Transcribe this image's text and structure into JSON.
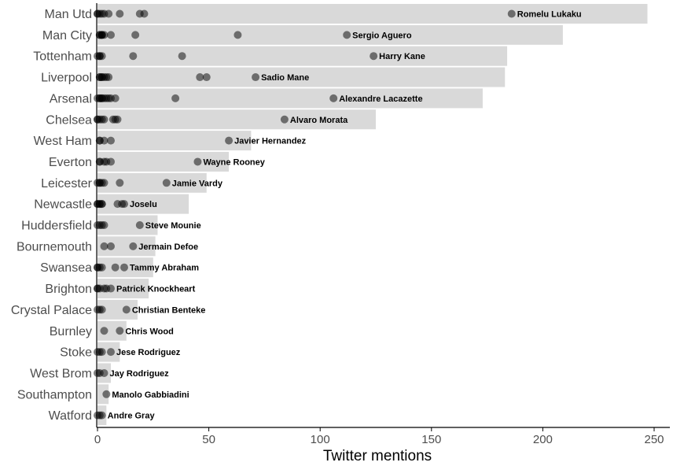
{
  "chart_data": {
    "type": "bar",
    "xlabel": "Twitter mentions",
    "ylabel": "",
    "xlim": [
      0,
      260
    ],
    "xticks": [
      0,
      50,
      100,
      150,
      200,
      250
    ],
    "tick_labels": [
      "0",
      "50",
      "100",
      "150",
      "200",
      "250"
    ],
    "grid": false,
    "colors": {
      "bar": "#d9d9d9",
      "point": "#000000",
      "point_alpha": 0.5,
      "axis": "#000000",
      "label": "#4d4d4d"
    },
    "categories": [
      "Man Utd",
      "Man City",
      "Tottenham",
      "Liverpool",
      "Arsenal",
      "Chelsea",
      "West Ham",
      "Everton",
      "Leicester",
      "Newcastle",
      "Huddersfield",
      "Bournemouth",
      "Swansea",
      "Brighton",
      "Crystal Palace",
      "Burnley",
      "Stoke",
      "West Brom",
      "Southampton",
      "Watford"
    ],
    "values": [
      247,
      209,
      184,
      183,
      173,
      125,
      69,
      59,
      49,
      41,
      27,
      26,
      25,
      23,
      18,
      13,
      10,
      6,
      5,
      4
    ],
    "top_players": [
      "Romelu Lukaku",
      "Sergio Aguero",
      "Harry Kane",
      "Sadio Mane",
      "Alexandre Lacazette",
      "Alvaro Morata",
      "Javier Hernandez",
      "Wayne Rooney",
      "Jamie Vardy",
      "Joselu",
      "Steve Mounie",
      "Jermain Defoe",
      "Tammy Abraham",
      "Patrick Knockheart",
      "Christian Benteke",
      "Chris Wood",
      "Jese Rodriguez",
      "Jay Rodriguez",
      "Manolo Gabbiadini",
      "Andre Gray"
    ],
    "player_mentions": [
      [
        0,
        0,
        1,
        2,
        3,
        5,
        10,
        19,
        21,
        186
      ],
      [
        1,
        1,
        2,
        2,
        2,
        3,
        6,
        17,
        63,
        112
      ],
      [
        0,
        1,
        1,
        2,
        16,
        38,
        124
      ],
      [
        1,
        1,
        2,
        2,
        3,
        4,
        5,
        46,
        49,
        71
      ],
      [
        0,
        1,
        1,
        2,
        2,
        3,
        4,
        5,
        6,
        8,
        35,
        106
      ],
      [
        0,
        0,
        1,
        2,
        3,
        7,
        8,
        9,
        84
      ],
      [
        1,
        1,
        3,
        6,
        59
      ],
      [
        1,
        1,
        3,
        4,
        6,
        45
      ],
      [
        0,
        1,
        1,
        2,
        3,
        10,
        31
      ],
      [
        0,
        0,
        1,
        1,
        2,
        2,
        9,
        11,
        12
      ],
      [
        0,
        1,
        2,
        3,
        19
      ],
      [
        3,
        6,
        16
      ],
      [
        0,
        0,
        1,
        2,
        8,
        12
      ],
      [
        0,
        0,
        1,
        3,
        4,
        6
      ],
      [
        0,
        1,
        2,
        13
      ],
      [
        3,
        10
      ],
      [
        0,
        1,
        2,
        6
      ],
      [
        0,
        1,
        3
      ],
      [
        4
      ],
      [
        0,
        1,
        2
      ]
    ]
  }
}
